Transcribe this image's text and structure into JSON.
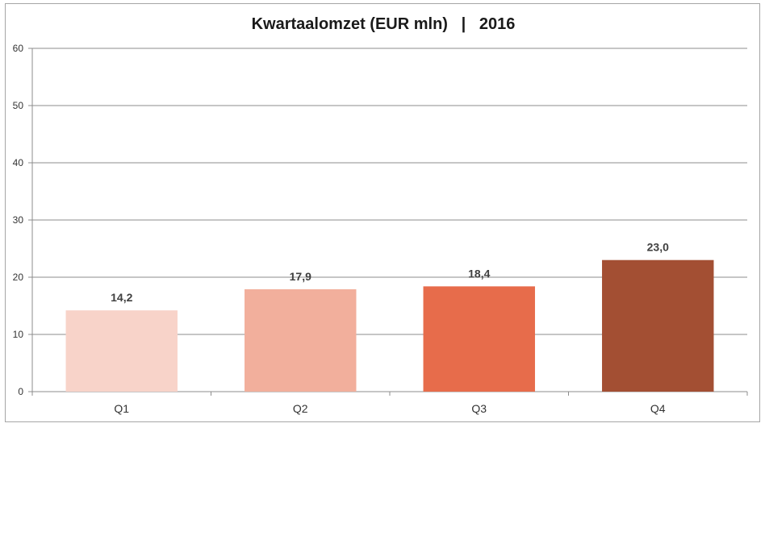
{
  "chart_data": {
    "type": "bar",
    "title": "Kwartaalomzet (EUR mln)   |   2016",
    "categories": [
      "Q1",
      "Q2",
      "Q3",
      "Q4"
    ],
    "values": [
      14.2,
      17.9,
      18.4,
      23.0
    ],
    "value_labels": [
      "14,2",
      "17,9",
      "18,4",
      "23,0"
    ],
    "bar_colors": [
      "#f8d3c9",
      "#f2af9c",
      "#e76c4b",
      "#a34f33"
    ],
    "ylim": [
      0,
      60
    ],
    "yticks": [
      0,
      10,
      20,
      30,
      40,
      50,
      60
    ],
    "xlabel": "",
    "ylabel": "",
    "grid": true,
    "legend": "none"
  }
}
